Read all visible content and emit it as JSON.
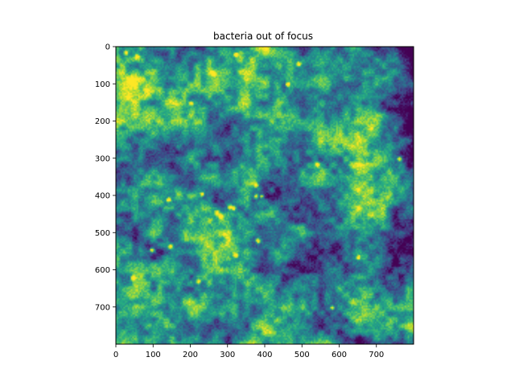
{
  "chart_data": {
    "type": "heatmap",
    "title": "bacteria out of focus",
    "xlabel": "",
    "ylabel": "",
    "colormap": "viridis",
    "extent": {
      "x": [
        0,
        800
      ],
      "y": [
        800,
        0
      ]
    },
    "xticks": [
      {
        "value": 0,
        "label": "0"
      },
      {
        "value": 100,
        "label": "100"
      },
      {
        "value": 200,
        "label": "200"
      },
      {
        "value": 300,
        "label": "300"
      },
      {
        "value": 400,
        "label": "400"
      },
      {
        "value": 500,
        "label": "500"
      },
      {
        "value": 600,
        "label": "600"
      },
      {
        "value": 700,
        "label": "700"
      }
    ],
    "yticks": [
      {
        "value": 0,
        "label": "0"
      },
      {
        "value": 100,
        "label": "100"
      },
      {
        "value": 200,
        "label": "200"
      },
      {
        "value": 300,
        "label": "300"
      },
      {
        "value": 400,
        "label": "400"
      },
      {
        "value": 500,
        "label": "500"
      },
      {
        "value": 600,
        "label": "600"
      },
      {
        "value": 700,
        "label": "700"
      }
    ],
    "bright_spots": [
      {
        "x": 25,
        "y": 15
      },
      {
        "x": 55,
        "y": 25
      },
      {
        "x": 260,
        "y": 70
      },
      {
        "x": 320,
        "y": 20
      },
      {
        "x": 460,
        "y": 100
      },
      {
        "x": 200,
        "y": 150
      },
      {
        "x": 540,
        "y": 315
      },
      {
        "x": 375,
        "y": 400
      },
      {
        "x": 390,
        "y": 400
      },
      {
        "x": 375,
        "y": 370
      },
      {
        "x": 230,
        "y": 395
      },
      {
        "x": 140,
        "y": 410
      },
      {
        "x": 305,
        "y": 430
      },
      {
        "x": 315,
        "y": 432
      },
      {
        "x": 270,
        "y": 445
      },
      {
        "x": 280,
        "y": 455
      },
      {
        "x": 95,
        "y": 545
      },
      {
        "x": 145,
        "y": 535
      },
      {
        "x": 380,
        "y": 520
      },
      {
        "x": 320,
        "y": 560
      },
      {
        "x": 220,
        "y": 630
      },
      {
        "x": 45,
        "y": 620
      },
      {
        "x": 650,
        "y": 565
      },
      {
        "x": 490,
        "y": 45
      },
      {
        "x": 760,
        "y": 300
      },
      {
        "x": 580,
        "y": 700
      }
    ]
  }
}
